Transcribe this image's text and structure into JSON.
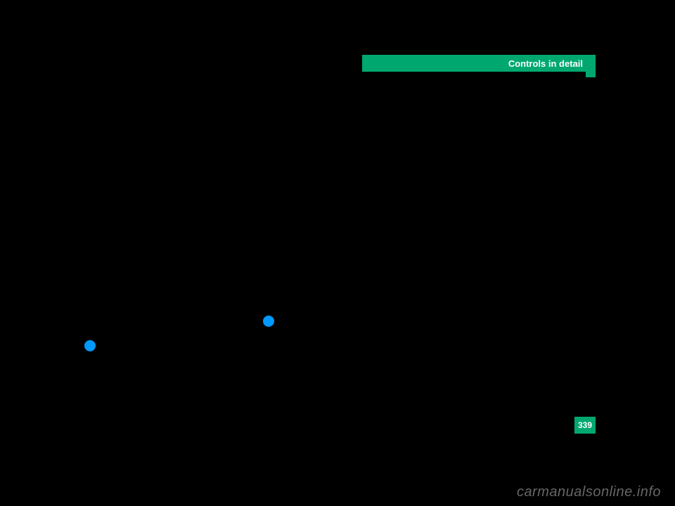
{
  "header": {
    "title": "Controls in detail",
    "bg_color": "#00a870",
    "text_color": "#ffffff"
  },
  "page_number": "339",
  "watermark": "carmanualsonline.info",
  "bullets": {
    "color": "#0099ff"
  },
  "background_color": "#000000"
}
